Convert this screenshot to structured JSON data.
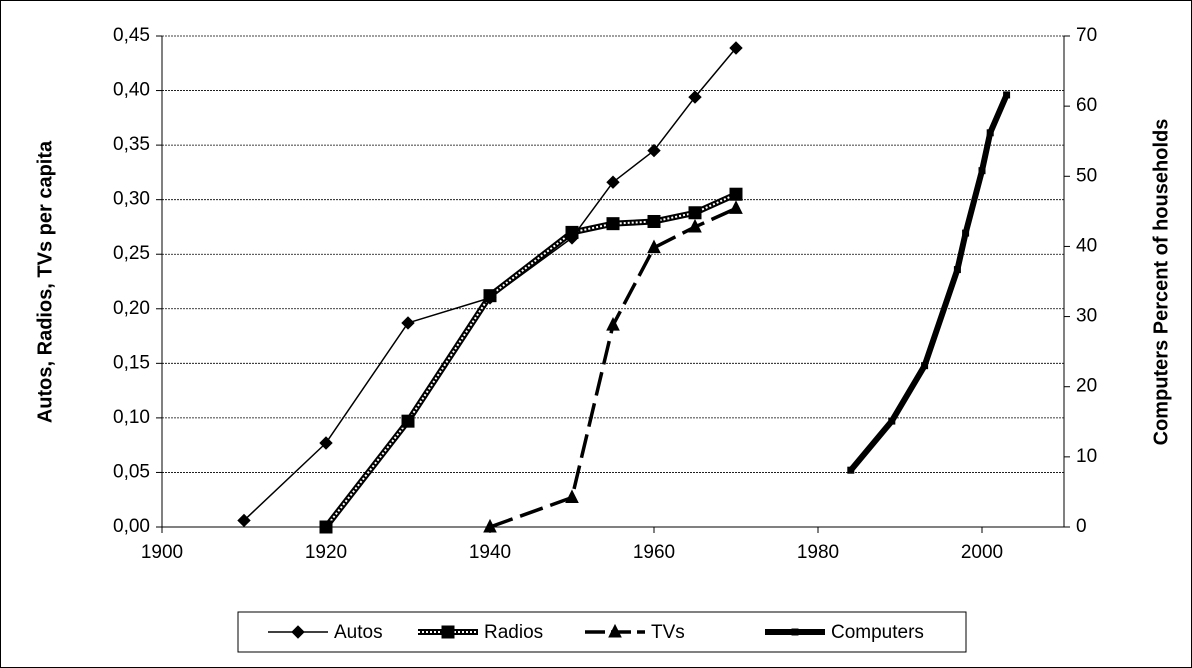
{
  "chart_data": {
    "type": "line",
    "ylabel": "Autos, Radios, TVs per capita",
    "y2label": "Computers Percent of households",
    "xlim": [
      1900,
      2010
    ],
    "xticks": [
      1900,
      1920,
      1940,
      1960,
      1980,
      2000
    ],
    "ylim": [
      0,
      0.45
    ],
    "yticks": [
      {
        "value": 0,
        "label": "0,00"
      },
      {
        "value": 0.05,
        "label": "0,05"
      },
      {
        "value": 0.1,
        "label": "0,10"
      },
      {
        "value": 0.15,
        "label": "0,15"
      },
      {
        "value": 0.2,
        "label": "0,20"
      },
      {
        "value": 0.25,
        "label": "0,25"
      },
      {
        "value": 0.3,
        "label": "0,30"
      },
      {
        "value": 0.35,
        "label": "0,35"
      },
      {
        "value": 0.4,
        "label": "0,40"
      },
      {
        "value": 0.45,
        "label": "0,45"
      }
    ],
    "y2lim": [
      0,
      70
    ],
    "y2ticks": [
      0,
      10,
      20,
      30,
      40,
      50,
      60,
      70
    ],
    "grid": true,
    "legend": "bottom",
    "series": [
      {
        "name": "Autos",
        "color": "#000000",
        "marker": "diamond",
        "x": [
          1910,
          1920,
          1930,
          1940,
          1950,
          1955,
          1960,
          1965,
          1970
        ],
        "values": [
          0.006,
          0.077,
          0.187,
          0.21,
          0.265,
          0.316,
          0.345,
          0.394,
          0.439
        ]
      },
      {
        "name": "Radios",
        "color": "#000000",
        "marker": "square",
        "x": [
          1920,
          1930,
          1940,
          1950,
          1955,
          1960,
          1965,
          1970
        ],
        "values": [
          0,
          0.097,
          0.212,
          0.27,
          0.278,
          0.28,
          0.288,
          0.305
        ]
      },
      {
        "name": "TVs",
        "color": "#000000",
        "marker": "triangle",
        "x": [
          1940,
          1950,
          1955,
          1960,
          1965,
          1970
        ],
        "values": [
          0,
          0.027,
          0.185,
          0.256,
          0.275,
          0.292
        ]
      },
      {
        "name": "Computers",
        "color": "#000000",
        "marker": "small-square",
        "axis": "y2",
        "x": [
          1984,
          1989,
          1993,
          1997,
          1998,
          2000,
          2001,
          2003
        ],
        "values": [
          8.1,
          15.1,
          23,
          36.7,
          41.9,
          50.8,
          56.2,
          61.6
        ]
      }
    ]
  }
}
